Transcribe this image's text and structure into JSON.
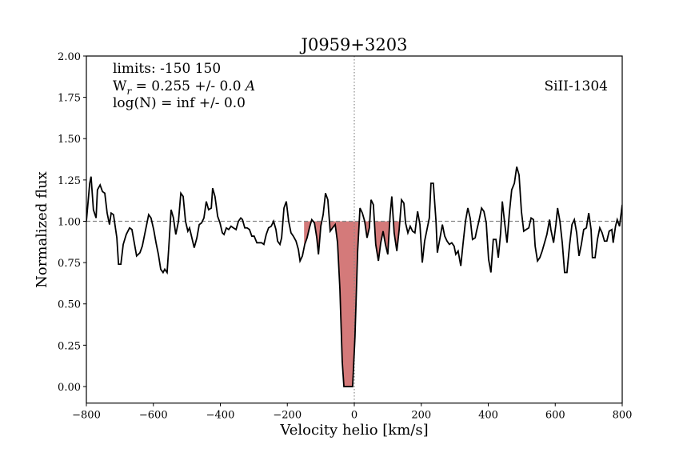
{
  "chart_data": {
    "type": "line",
    "title": "J0959+3203",
    "x_label": "Velocity helio [km/s]",
    "y_label": "Normalized flux",
    "annotations": {
      "limits": "limits: -150 150",
      "width": {
        "main": "W",
        "sub": "r",
        "rest": " = 0.255 +/- 0.0 ",
        "unit": "A"
      },
      "column": "log(N) = inf +/- 0.0",
      "ion": "SiII-1304"
    },
    "x": [
      -800,
      -790,
      -786,
      -779,
      -771,
      -767,
      -759,
      -752,
      -745,
      -738,
      -731,
      -726,
      -719,
      -709,
      -704,
      -697,
      -690,
      -681,
      -671,
      -664,
      -657,
      -650,
      -640,
      -633,
      -626,
      -619,
      -614,
      -607,
      -599,
      -592,
      -585,
      -578,
      -571,
      -566,
      -559,
      -554,
      -547,
      -540,
      -533,
      -525,
      -518,
      -511,
      -504,
      -497,
      -492,
      -485,
      -478,
      -470,
      -463,
      -456,
      -449,
      -442,
      -435,
      -427,
      -423,
      -416,
      -408,
      -401,
      -394,
      -389,
      -382,
      -375,
      -368,
      -361,
      -353,
      -346,
      -339,
      -334,
      -327,
      -320,
      -313,
      -306,
      -299,
      -291,
      -284,
      -277,
      -270,
      -263,
      -256,
      -248,
      -241,
      -234,
      -229,
      -222,
      -217,
      -210,
      -203,
      -196,
      -189,
      -182,
      -174,
      -167,
      -162,
      -155,
      -148,
      -141,
      -134,
      -127,
      -119,
      -112,
      -107,
      -100,
      -93,
      -86,
      -79,
      -72,
      -65,
      -57,
      -50,
      -43,
      -36,
      -31,
      -24,
      -17,
      -10,
      -5,
      2,
      10,
      17,
      24,
      31,
      38,
      45,
      50,
      57,
      64,
      72,
      79,
      86,
      93,
      100,
      107,
      112,
      119,
      127,
      134,
      141,
      148,
      153,
      160,
      167,
      174,
      181,
      189,
      196,
      203,
      210,
      217,
      224,
      229,
      236,
      244,
      248,
      256,
      263,
      270,
      277,
      284,
      291,
      298,
      303,
      310,
      318,
      325,
      332,
      339,
      346,
      353,
      361,
      365,
      372,
      380,
      387,
      394,
      401,
      408,
      415,
      423,
      430,
      437,
      442,
      449,
      456,
      463,
      470,
      478,
      485,
      492,
      499,
      506,
      513,
      521,
      528,
      535,
      540,
      547,
      554,
      561,
      568,
      575,
      583,
      587,
      595,
      602,
      607,
      614,
      621,
      628,
      635,
      643,
      650,
      657,
      664,
      671,
      678,
      685,
      693,
      700,
      707,
      711,
      719,
      726,
      733,
      740,
      747,
      754,
      761,
      769,
      773,
      780,
      785,
      792,
      800
    ],
    "values": [
      1.0,
      1.23,
      1.27,
      1.07,
      1.02,
      1.19,
      1.22,
      1.18,
      1.17,
      1.05,
      0.98,
      1.05,
      1.04,
      0.9,
      0.74,
      0.74,
      0.86,
      0.92,
      0.96,
      0.95,
      0.87,
      0.79,
      0.81,
      0.85,
      0.92,
      0.99,
      1.04,
      1.02,
      0.95,
      0.87,
      0.8,
      0.71,
      0.69,
      0.71,
      0.69,
      0.84,
      1.07,
      1.02,
      0.92,
      1.0,
      1.17,
      1.15,
      1.0,
      0.94,
      0.96,
      0.9,
      0.84,
      0.9,
      0.98,
      0.99,
      1.02,
      1.12,
      1.07,
      1.08,
      1.2,
      1.15,
      1.03,
      0.99,
      0.93,
      0.92,
      0.96,
      0.95,
      0.97,
      0.96,
      0.95,
      1.0,
      1.02,
      1.01,
      0.96,
      0.96,
      0.95,
      0.91,
      0.91,
      0.87,
      0.87,
      0.87,
      0.86,
      0.92,
      0.96,
      0.97,
      1.0,
      0.95,
      0.88,
      0.86,
      0.9,
      1.08,
      1.12,
      1.0,
      0.93,
      0.91,
      0.88,
      0.83,
      0.76,
      0.79,
      0.86,
      0.9,
      0.96,
      1.01,
      0.99,
      0.9,
      0.8,
      0.97,
      1.04,
      1.17,
      1.13,
      0.94,
      0.96,
      0.98,
      0.87,
      0.59,
      0.15,
      0.0,
      0.0,
      0.0,
      0.0,
      0.0,
      0.3,
      0.82,
      1.08,
      1.05,
      1.0,
      0.9,
      0.96,
      1.13,
      1.1,
      0.86,
      0.76,
      0.87,
      0.94,
      0.86,
      0.8,
      1.04,
      1.15,
      0.93,
      0.82,
      0.95,
      1.13,
      1.11,
      0.99,
      0.93,
      0.97,
      0.94,
      0.93,
      1.06,
      0.98,
      0.75,
      0.88,
      0.95,
      1.02,
      1.23,
      1.23,
      1.0,
      0.81,
      0.9,
      0.98,
      0.91,
      0.88,
      0.86,
      0.87,
      0.85,
      0.8,
      0.82,
      0.73,
      0.87,
      1.0,
      1.08,
      1.02,
      0.89,
      0.9,
      0.94,
      1.0,
      1.08,
      1.06,
      0.99,
      0.77,
      0.69,
      0.89,
      0.89,
      0.78,
      0.93,
      1.12,
      0.99,
      0.87,
      1.05,
      1.19,
      1.23,
      1.33,
      1.28,
      1.06,
      0.94,
      0.95,
      0.96,
      1.02,
      1.01,
      0.85,
      0.76,
      0.78,
      0.82,
      0.87,
      0.92,
      1.01,
      0.95,
      0.87,
      0.98,
      1.08,
      1.0,
      0.87,
      0.69,
      0.69,
      0.86,
      0.98,
      1.01,
      0.93,
      0.79,
      0.86,
      0.95,
      0.96,
      1.05,
      0.95,
      0.78,
      0.78,
      0.89,
      0.96,
      0.93,
      0.88,
      0.88,
      0.94,
      0.95,
      0.87,
      0.97,
      1.01,
      0.97,
      1.1
    ],
    "color": "#000000",
    "fill_color": "#d47a7a",
    "fill_xlim": [
      -150,
      150
    ],
    "hline": 1,
    "vline": 0,
    "xlim": [
      -800,
      800
    ],
    "ylim": [
      -0.1,
      2.0
    ],
    "xticks": [
      {
        "value": -800,
        "label": "−800"
      },
      {
        "value": -600,
        "label": "−600"
      },
      {
        "value": -400,
        "label": "−400"
      },
      {
        "value": -200,
        "label": "−200"
      },
      0,
      200,
      400,
      600,
      800
    ],
    "yticks": [
      {
        "value": 0,
        "label": "0.00"
      },
      {
        "value": 0.25,
        "label": "0.25"
      },
      {
        "value": 0.5,
        "label": "0.50"
      },
      {
        "value": 0.75,
        "label": "0.75"
      },
      {
        "value": 1,
        "label": "1.00"
      },
      {
        "value": 1.25,
        "label": "1.25"
      },
      {
        "value": 1.5,
        "label": "1.50"
      },
      {
        "value": 1.75,
        "label": "1.75"
      },
      {
        "value": 2,
        "label": "2.00"
      }
    ]
  }
}
